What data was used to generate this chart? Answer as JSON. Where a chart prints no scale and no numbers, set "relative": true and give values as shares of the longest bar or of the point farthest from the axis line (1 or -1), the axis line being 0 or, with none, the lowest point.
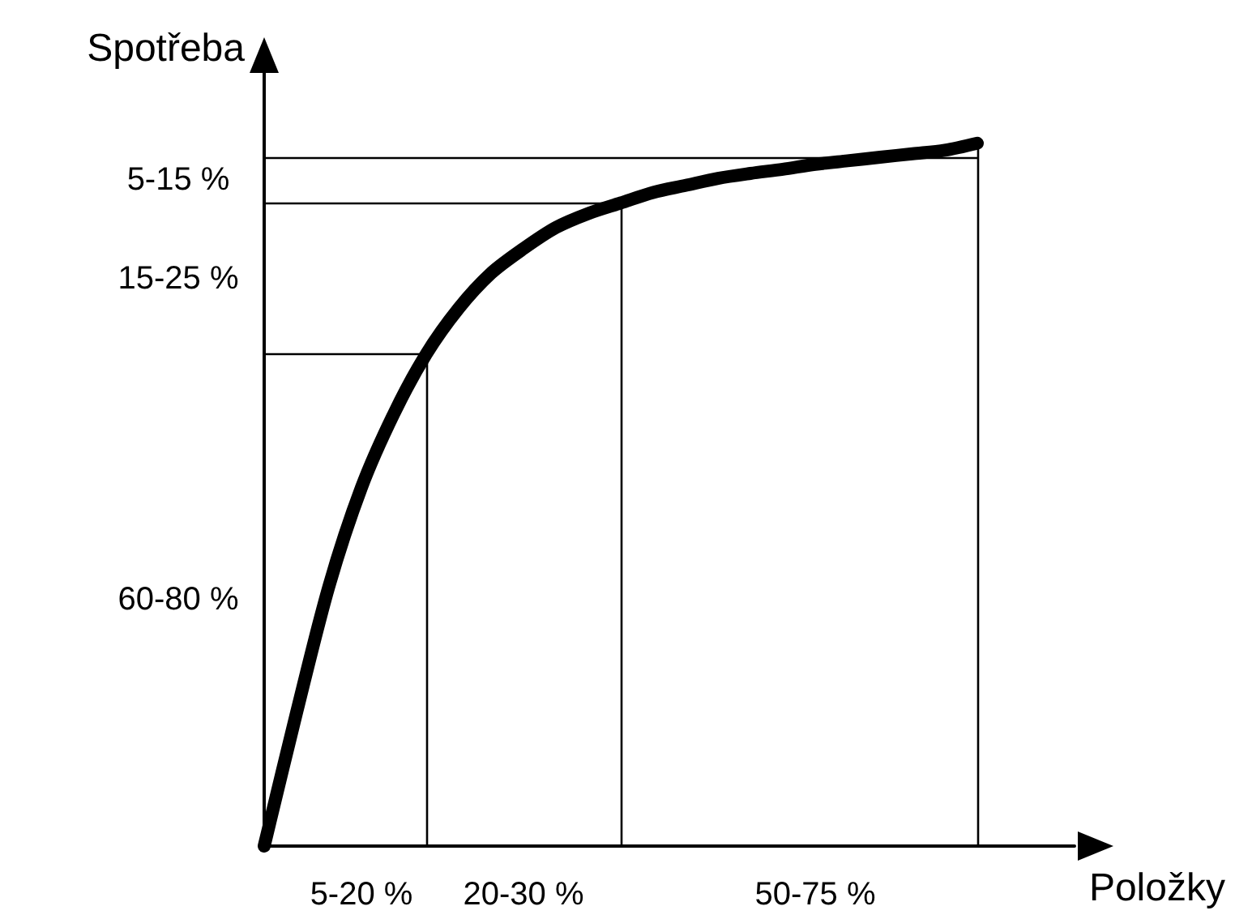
{
  "chart_data": {
    "type": "line",
    "relative": true,
    "xlabel": "Položky",
    "ylabel": "Spotřeba",
    "categories": [
      null,
      null,
      null,
      null,
      null,
      null,
      null,
      null,
      null,
      null,
      null,
      null,
      null,
      null,
      null,
      null,
      null,
      null,
      null,
      null,
      null,
      null,
      null,
      null,
      null,
      null
    ],
    "values": [
      0,
      0.19,
      0.37,
      0.51,
      0.615,
      0.7,
      0.765,
      0.815,
      0.85,
      0.88,
      0.9,
      0.915,
      0.93,
      0.94,
      0.95,
      0.957,
      0.963,
      0.97,
      0.975,
      0.98,
      0.985,
      0.99,
      1,
      null,
      null,
      null
    ],
    "color": "#000000",
    "line_style": "solid",
    "ref_lines": [
      {
        "axis": "y",
        "value": 0.7,
        "color": "#000000"
      },
      {
        "axis": "y",
        "value": 0.915,
        "color": "#000000"
      },
      {
        "axis": "y",
        "value": 0.98,
        "color": "#000000"
      }
    ],
    "annotations": [
      "5-15 %",
      "15-25 %",
      "60-80 %",
      "5-20 %",
      "20-30 %",
      "50-75 %"
    ]
  }
}
